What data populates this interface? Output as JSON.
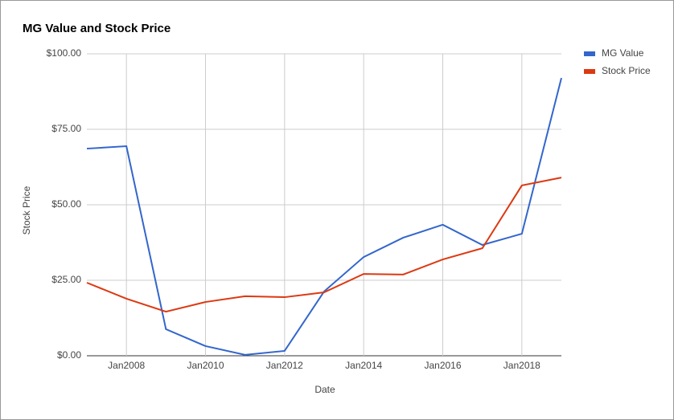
{
  "chart_data": {
    "type": "line",
    "title": "MG Value and Stock Price",
    "x_label": "Date",
    "y_label": "Stock Price",
    "categories": [
      null,
      "Jan2008",
      null,
      "Jan2010",
      null,
      "Jan2012",
      null,
      "Jan2014",
      null,
      "Jan2016",
      null,
      "Jan2018",
      null
    ],
    "series": [
      {
        "name": "MG Value",
        "color": "#3366cc",
        "values": [
          68.6,
          69.4,
          8.8,
          3.2,
          0.3,
          1.6,
          21.3,
          32.7,
          39.1,
          43.4,
          36.7,
          40.4,
          92.0
        ]
      },
      {
        "name": "Stock Price",
        "color": "#dc3912",
        "values": [
          24.2,
          18.9,
          14.6,
          17.8,
          19.7,
          19.4,
          21.0,
          27.1,
          26.9,
          31.9,
          35.6,
          56.4,
          59.0
        ]
      }
    ],
    "ylim": [
      0,
      100
    ],
    "yticks": [
      {
        "value": 0,
        "label": "$0.00"
      },
      {
        "value": 25,
        "label": "$25.00"
      },
      {
        "value": 50,
        "label": "$50.00"
      },
      {
        "value": 75,
        "label": "$75.00"
      },
      {
        "value": 100,
        "label": "$100.00"
      }
    ],
    "grid": true,
    "legend": "right"
  }
}
